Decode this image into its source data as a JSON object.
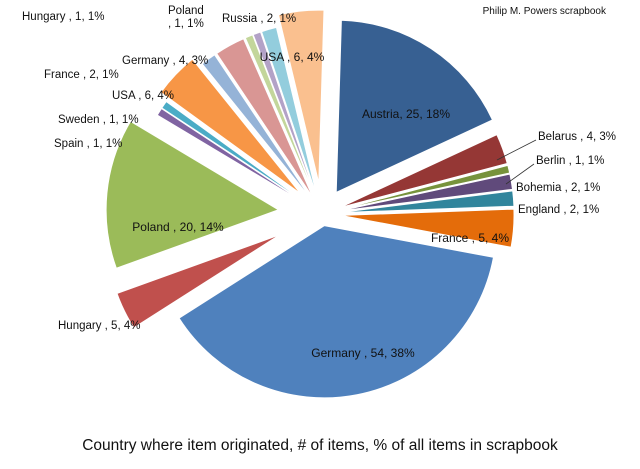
{
  "watermark": "Philip M. Powers scrapbook",
  "caption": "Country where item originated, # of items, % of all items in scrapbook",
  "chart_data": {
    "type": "pie",
    "title": "",
    "legend": "none",
    "slices": [
      {
        "name": "Austria",
        "count": 25,
        "percent": 18,
        "label": "Austria, 25, 18%",
        "color": "#376092"
      },
      {
        "name": "Belarus",
        "count": 4,
        "percent": 3,
        "label": "Belarus , 4, 3%",
        "color": "#953735"
      },
      {
        "name": "Berlin",
        "count": 1,
        "percent": 1,
        "label": "Berlin , 1, 1%",
        "color": "#77933c"
      },
      {
        "name": "Bohemia",
        "count": 2,
        "percent": 1,
        "label": "Bohemia , 2, 1%",
        "color": "#604a7b"
      },
      {
        "name": "England",
        "count": 2,
        "percent": 1,
        "label": "England , 2, 1%",
        "color": "#31859c"
      },
      {
        "name": "France",
        "count": 5,
        "percent": 4,
        "label": "France , 5, 4%",
        "color": "#e46c0a"
      },
      {
        "name": "Germany",
        "count": 54,
        "percent": 38,
        "label": "Germany , 54, 38%",
        "color": "#4f81bd"
      },
      {
        "name": "Hungary",
        "count": 5,
        "percent": 4,
        "label": "Hungary , 5, 4%",
        "color": "#c0504d"
      },
      {
        "name": "Poland",
        "count": 20,
        "percent": 14,
        "label": "Poland , 20, 14%",
        "color": "#9bbb59"
      },
      {
        "name": "Spain",
        "count": 1,
        "percent": 1,
        "label": "Spain , 1, 1%",
        "color": "#8064a2"
      },
      {
        "name": "Sweden",
        "count": 1,
        "percent": 1,
        "label": "Sweden , 1, 1%",
        "color": "#4bacc6"
      },
      {
        "name": "USA",
        "count": 6,
        "percent": 4,
        "label": "USA , 6, 4%",
        "color": "#f79646"
      },
      {
        "name": "France",
        "count": 2,
        "percent": 1,
        "label": "France , 2, 1%",
        "color": "#95b3d7"
      },
      {
        "name": "Germany",
        "count": 4,
        "percent": 3,
        "label": "Germany , 4, 3%",
        "color": "#d99694"
      },
      {
        "name": "Hungary",
        "count": 1,
        "percent": 1,
        "label": "Hungary , 1, 1%",
        "color": "#c3d69b"
      },
      {
        "name": "Poland",
        "count": 1,
        "percent": 1,
        "label": "Poland\n, 1, 1%",
        "color": "#b3a2c7"
      },
      {
        "name": "Russia",
        "count": 2,
        "percent": 1,
        "label": "Russia , 2, 1%",
        "color": "#93cddd"
      },
      {
        "name": "USA",
        "count": 6,
        "percent": 4,
        "label": "USA , 6, 4%",
        "color": "#fac08f"
      }
    ]
  }
}
